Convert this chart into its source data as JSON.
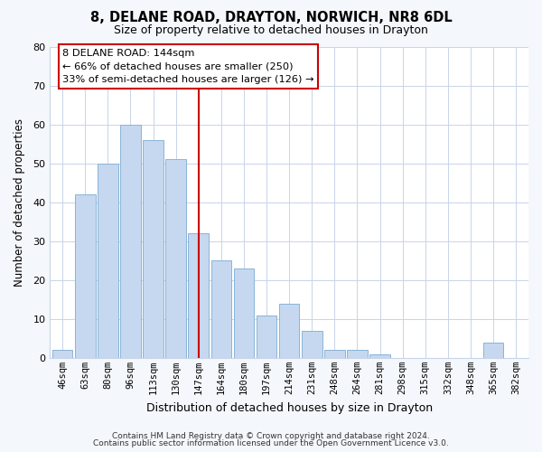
{
  "title": "8, DELANE ROAD, DRAYTON, NORWICH, NR8 6DL",
  "subtitle": "Size of property relative to detached houses in Drayton",
  "xlabel": "Distribution of detached houses by size in Drayton",
  "ylabel": "Number of detached properties",
  "bar_labels": [
    "46sqm",
    "63sqm",
    "80sqm",
    "96sqm",
    "113sqm",
    "130sqm",
    "147sqm",
    "164sqm",
    "180sqm",
    "197sqm",
    "214sqm",
    "231sqm",
    "248sqm",
    "264sqm",
    "281sqm",
    "298sqm",
    "315sqm",
    "332sqm",
    "348sqm",
    "365sqm",
    "382sqm"
  ],
  "bar_values": [
    2,
    42,
    50,
    60,
    56,
    51,
    32,
    25,
    23,
    11,
    14,
    7,
    2,
    2,
    1,
    0,
    0,
    0,
    0,
    4,
    0
  ],
  "bar_color": "#c5d8ef",
  "bar_edge_color": "#8ab4d8",
  "marker_index": 6,
  "marker_color": "#cc0000",
  "ylim": [
    0,
    80
  ],
  "yticks": [
    0,
    10,
    20,
    30,
    40,
    50,
    60,
    70,
    80
  ],
  "annotation_lines": [
    "8 DELANE ROAD: 144sqm",
    "← 66% of detached houses are smaller (250)",
    "33% of semi-detached houses are larger (126) →"
  ],
  "footer_lines": [
    "Contains HM Land Registry data © Crown copyright and database right 2024.",
    "Contains public sector information licensed under the Open Government Licence v3.0."
  ],
  "background_color": "#f4f7fb",
  "plot_bg_color": "#ffffff",
  "grid_color": "#c8d4e8"
}
